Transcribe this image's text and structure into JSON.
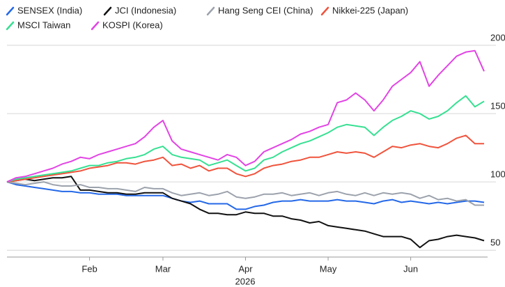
{
  "chart_data": {
    "type": "line",
    "categories": [
      null,
      null,
      null,
      null,
      null,
      null,
      null,
      null,
      null,
      "Feb",
      null,
      null,
      null,
      null,
      null,
      null,
      null,
      "Mar",
      null,
      null,
      null,
      null,
      null,
      null,
      null,
      null,
      "Apr",
      null,
      null,
      null,
      null,
      null,
      null,
      null,
      null,
      "May",
      null,
      null,
      null,
      null,
      null,
      null,
      null,
      null,
      "Jun",
      null,
      null,
      null,
      null,
      null,
      null,
      null,
      null
    ],
    "xlabel": "2026",
    "ylim": [
      45,
      200
    ],
    "yticks": [
      200,
      150,
      100,
      50
    ],
    "grid": true,
    "legend": "top-left",
    "series": [
      {
        "name": "SENSEX (India)",
        "color": "#2468e8",
        "values": [
          100,
          98,
          97,
          96,
          95,
          94,
          93,
          93,
          92,
          92,
          91,
          91,
          91,
          90,
          90,
          90,
          90,
          90,
          88,
          86,
          85,
          86,
          84,
          84,
          84,
          80,
          80,
          82,
          83,
          85,
          86,
          86,
          87,
          86,
          86,
          86,
          87,
          86,
          86,
          85,
          84,
          86,
          87,
          85,
          86,
          85,
          84,
          85,
          84,
          85,
          86,
          86,
          85
        ]
      },
      {
        "name": "JCI (Indonesia)",
        "color": "#111111",
        "values": [
          100,
          101,
          102,
          101,
          102,
          103,
          103,
          104,
          94,
          94,
          93,
          92,
          92,
          91,
          91,
          92,
          92,
          92,
          88,
          86,
          84,
          80,
          77,
          77,
          76,
          76,
          78,
          77,
          77,
          75,
          75,
          73,
          72,
          70,
          71,
          68,
          67,
          66,
          65,
          64,
          62,
          60,
          60,
          60,
          58,
          52,
          57,
          58,
          60,
          61,
          60,
          59,
          57
        ]
      },
      {
        "name": "Hang Seng CEI (China)",
        "color": "#9ca2ac",
        "values": [
          100,
          99,
          98,
          99,
          100,
          98,
          97,
          97,
          98,
          96,
          96,
          95,
          95,
          94,
          93,
          96,
          95,
          95,
          92,
          90,
          91,
          92,
          90,
          91,
          93,
          89,
          88,
          89,
          91,
          91,
          92,
          90,
          91,
          92,
          90,
          92,
          93,
          91,
          90,
          92,
          90,
          92,
          91,
          92,
          91,
          88,
          90,
          87,
          88,
          86,
          87,
          83,
          83
        ]
      },
      {
        "name": "Nikkei-225 (Japan)",
        "color": "#f0533c",
        "values": [
          100,
          101,
          102,
          103,
          104,
          105,
          106,
          107,
          108,
          110,
          111,
          112,
          114,
          114,
          113,
          115,
          116,
          118,
          112,
          113,
          110,
          112,
          108,
          110,
          110,
          106,
          104,
          106,
          110,
          112,
          113,
          115,
          116,
          118,
          118,
          120,
          122,
          121,
          122,
          121,
          118,
          122,
          126,
          125,
          127,
          128,
          126,
          125,
          128,
          132,
          134,
          128,
          128
        ]
      },
      {
        "name": "MSCI Taiwan",
        "color": "#36e092",
        "values": [
          100,
          102,
          103,
          104,
          105,
          106,
          107,
          108,
          110,
          112,
          112,
          114,
          115,
          117,
          118,
          120,
          124,
          126,
          120,
          118,
          117,
          116,
          112,
          114,
          116,
          112,
          108,
          110,
          116,
          118,
          122,
          125,
          128,
          130,
          133,
          136,
          140,
          142,
          141,
          140,
          134,
          140,
          145,
          148,
          152,
          150,
          146,
          148,
          152,
          158,
          163,
          155,
          159
        ]
      },
      {
        "name": "KOSPI (Korea)",
        "color": "#e244e4",
        "values": [
          100,
          103,
          104,
          106,
          108,
          110,
          113,
          115,
          118,
          117,
          120,
          122,
          124,
          126,
          128,
          133,
          140,
          145,
          130,
          124,
          122,
          120,
          118,
          116,
          120,
          118,
          112,
          115,
          122,
          125,
          128,
          131,
          135,
          137,
          140,
          142,
          158,
          160,
          165,
          160,
          152,
          160,
          170,
          175,
          180,
          188,
          170,
          178,
          185,
          192,
          195,
          196,
          181
        ]
      }
    ]
  }
}
